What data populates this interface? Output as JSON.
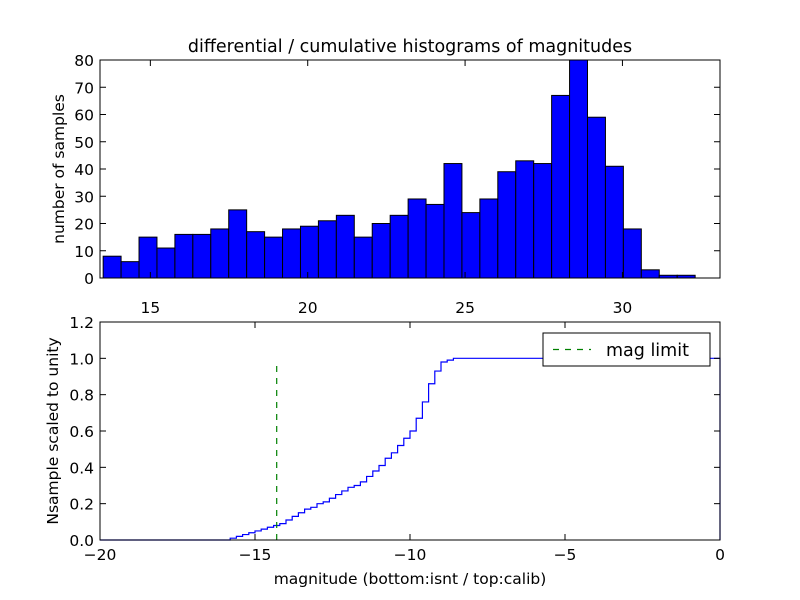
{
  "title": "differential / cumulative histograms of magnitudes",
  "chart_data": [
    {
      "type": "bar",
      "name": "differential-histogram",
      "title": "differential / cumulative histograms of magnitudes",
      "xlabel": "",
      "ylabel": "number of samples",
      "xlim": [
        13.4,
        33.1
      ],
      "ylim": [
        0,
        80
      ],
      "xticks": [
        15,
        20,
        25,
        30
      ],
      "yticks": [
        0,
        10,
        20,
        30,
        40,
        50,
        60,
        70,
        80
      ],
      "bin_edges": [
        13.5,
        14.07,
        14.64,
        15.21,
        15.78,
        16.35,
        16.92,
        17.49,
        18.06,
        18.63,
        19.2,
        19.77,
        20.34,
        20.91,
        21.48,
        22.05,
        22.62,
        23.19,
        23.76,
        24.33,
        24.9,
        25.47,
        26.04,
        26.61,
        27.18,
        27.75,
        28.32,
        28.89,
        29.46,
        30.03,
        30.6,
        31.17,
        31.74,
        32.31
      ],
      "values": [
        8,
        6,
        15,
        11,
        16,
        16,
        18,
        25,
        17,
        15,
        18,
        19,
        21,
        23,
        15,
        20,
        23,
        29,
        27,
        42,
        24,
        29,
        39,
        43,
        42,
        67,
        80,
        59,
        41,
        18,
        3,
        1,
        1
      ],
      "color": "#0000ff",
      "edge_color": "#000000"
    },
    {
      "type": "line",
      "name": "cumulative-histogram",
      "title": "",
      "xlabel": "magnitude (bottom:isnt / top:calib)",
      "ylabel": "Nsample scaled to unity",
      "xlim": [
        -20,
        0
      ],
      "ylim": [
        0,
        1.2
      ],
      "xticks": [
        -20,
        -15,
        -10,
        -5,
        0
      ],
      "xtick_labels": [
        "−20",
        "−15",
        "−10",
        "−5",
        "0"
      ],
      "yticks": [
        0,
        0.2,
        0.4,
        0.6,
        0.8,
        1.0,
        1.2
      ],
      "ytick_labels": [
        "0.0",
        "0.2",
        "0.4",
        "0.6",
        "0.8",
        "1.0",
        "1.2"
      ],
      "series": [
        {
          "name": "cumulative",
          "color": "#0000ff",
          "step": true,
          "x": [
            -20,
            -15.8,
            -15.6,
            -15.4,
            -15.2,
            -15.0,
            -14.8,
            -14.6,
            -14.4,
            -14.2,
            -14.0,
            -13.8,
            -13.6,
            -13.4,
            -13.2,
            -13.0,
            -12.8,
            -12.6,
            -12.4,
            -12.2,
            -12.0,
            -11.8,
            -11.6,
            -11.4,
            -11.2,
            -11.0,
            -10.8,
            -10.6,
            -10.4,
            -10.2,
            -10.0,
            -9.8,
            -9.6,
            -9.4,
            -9.2,
            -9.0,
            -8.8,
            -8.6,
            -8.4,
            -8.2,
            -8.0,
            -7.5,
            -7.0,
            -6.0,
            -0.05
          ],
          "y": [
            0.0,
            0.01,
            0.02,
            0.03,
            0.04,
            0.05,
            0.06,
            0.07,
            0.08,
            0.09,
            0.11,
            0.13,
            0.15,
            0.17,
            0.18,
            0.2,
            0.21,
            0.23,
            0.25,
            0.27,
            0.29,
            0.3,
            0.32,
            0.35,
            0.38,
            0.41,
            0.45,
            0.48,
            0.52,
            0.56,
            0.6,
            0.67,
            0.76,
            0.86,
            0.93,
            0.98,
            0.99,
            1.0,
            1.0,
            1.0,
            1.0,
            1.0,
            1.0,
            1.0,
            1.0
          ]
        },
        {
          "name": "mag limit",
          "color": "#008000",
          "dashed": true,
          "x": [
            -14.3,
            -14.3
          ],
          "y": [
            0,
            0.97
          ]
        }
      ],
      "legend": {
        "label": "mag limit",
        "position": "top-right"
      }
    }
  ]
}
